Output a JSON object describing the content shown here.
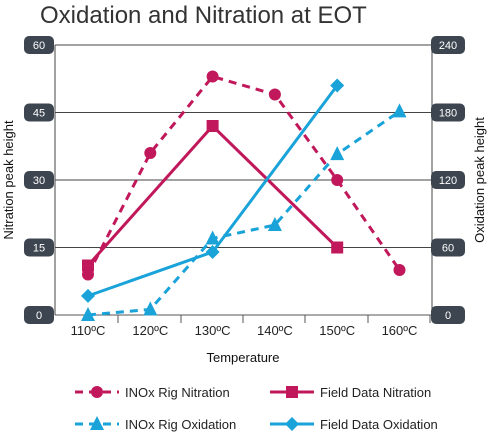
{
  "chart_data": {
    "type": "line",
    "title": "Oxidation and Nitration at EOT",
    "xlabel": "Temperature",
    "ylabel_left": "Nitration peak height",
    "ylabel_right": "Oxidation peak height",
    "categories": [
      "110ºC",
      "120ºC",
      "130ºC",
      "140ºC",
      "150ºC",
      "160ºC"
    ],
    "ylim_left": [
      0,
      60
    ],
    "ylim_right": [
      0,
      240
    ],
    "yticks_left": [
      "0",
      "15",
      "30",
      "45",
      "60"
    ],
    "yticks_right": [
      "0",
      "60",
      "120",
      "180",
      "240"
    ],
    "grid": true,
    "legend_position": "bottom",
    "series": [
      {
        "name": "INOx Rig Nitration",
        "axis": "left",
        "color": "#c0185a",
        "dash": true,
        "marker": "circle",
        "x": [
          0,
          1,
          2,
          3,
          4,
          5
        ],
        "values": [
          9,
          36,
          53,
          49,
          30,
          10
        ]
      },
      {
        "name": "Field Data Nitration",
        "axis": "left",
        "color": "#c0185a",
        "dash": false,
        "marker": "square",
        "x": [
          0,
          2,
          4
        ],
        "values": [
          11,
          42,
          15
        ]
      },
      {
        "name": "INOx Rig Oxidation",
        "axis": "right",
        "color": "#1aa3d9",
        "dash": true,
        "marker": "triangle",
        "x": [
          0,
          1,
          2,
          3,
          4,
          5
        ],
        "values": [
          0,
          5,
          68,
          80,
          143,
          181
        ]
      },
      {
        "name": "Field Data Oxidation",
        "axis": "right",
        "color": "#1aa3d9",
        "dash": false,
        "marker": "diamond",
        "x": [
          0,
          2,
          4
        ],
        "values": [
          17,
          56,
          204
        ]
      }
    ]
  }
}
